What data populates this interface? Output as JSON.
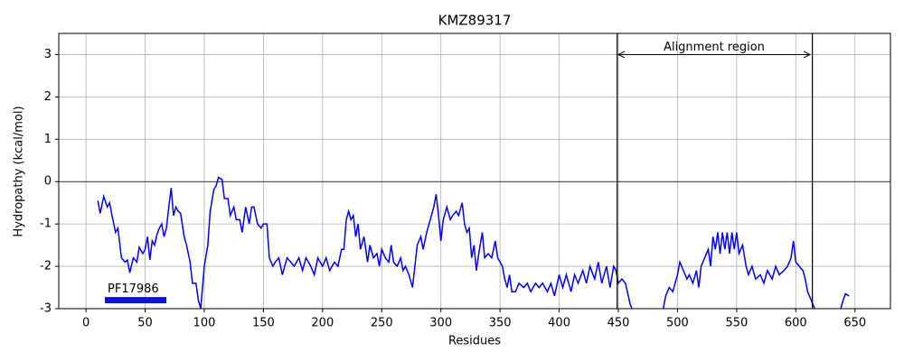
{
  "chart_data": {
    "type": "line",
    "title": "KMZ89317",
    "xlabel": "Residues",
    "ylabel": "Hydropathy (kcal/mol)",
    "xlim": [
      -23,
      680
    ],
    "ylim": [
      -3,
      3.5
    ],
    "xticks": [
      0,
      50,
      100,
      150,
      200,
      250,
      300,
      350,
      400,
      450,
      500,
      550,
      600,
      650
    ],
    "yticks": [
      -3,
      -2,
      -1,
      0,
      1,
      2,
      3
    ],
    "grid": true,
    "vlines": [
      449,
      614
    ],
    "hlines": [
      0
    ],
    "region": {
      "label": "Alignment region",
      "start": 450,
      "end": 612,
      "y": 3
    },
    "domain": {
      "label": "PF17986",
      "start": 16,
      "end": 68,
      "y": -2.8,
      "color": "#0a14d8"
    },
    "series": [
      {
        "name": "Hydropathy",
        "color": "#0000ff",
        "x": [
          10,
          12,
          15,
          18,
          20,
          22,
          25,
          27,
          30,
          33,
          35,
          37,
          40,
          43,
          45,
          48,
          50,
          52,
          54,
          56,
          58,
          60,
          62,
          64,
          66,
          68,
          70,
          72,
          74,
          76,
          78,
          80,
          83,
          85,
          88,
          90,
          93,
          95,
          97,
          100,
          103,
          105,
          108,
          110,
          112,
          115,
          117,
          120,
          122,
          125,
          127,
          130,
          132,
          135,
          138,
          140,
          142,
          145,
          148,
          150,
          153,
          155,
          158,
          160,
          163,
          166,
          170,
          173,
          176,
          180,
          183,
          186,
          190,
          193,
          196,
          200,
          203,
          206,
          210,
          213,
          216,
          218,
          220,
          222,
          224,
          226,
          228,
          230,
          232,
          235,
          238,
          240,
          243,
          246,
          248,
          250,
          253,
          256,
          258,
          260,
          263,
          266,
          268,
          270,
          273,
          276,
          278,
          280,
          283,
          285,
          288,
          290,
          292,
          294,
          296,
          298,
          300,
          302,
          305,
          308,
          310,
          313,
          315,
          318,
          320,
          322,
          324,
          326,
          328,
          330,
          332,
          335,
          337,
          340,
          343,
          346,
          348,
          350,
          352,
          354,
          356,
          358,
          360,
          363,
          366,
          370,
          373,
          376,
          380,
          383,
          386,
          390,
          393,
          396,
          400,
          403,
          406,
          410,
          413,
          416,
          420,
          423,
          426,
          430,
          433,
          436,
          440,
          443,
          446,
          448,
          450,
          453,
          456,
          460,
          463,
          466,
          470,
          475,
          480,
          485,
          488,
          490,
          493,
          496,
          500,
          502,
          505,
          508,
          510,
          513,
          516,
          518,
          520,
          523,
          526,
          528,
          530,
          532,
          534,
          536,
          538,
          540,
          542,
          544,
          546,
          548,
          550,
          552,
          555,
          558,
          560,
          563,
          566,
          570,
          573,
          576,
          580,
          583,
          586,
          590,
          593,
          596,
          598,
          600,
          603,
          606,
          608,
          610,
          613,
          616,
          620,
          625,
          630,
          635,
          638,
          640,
          642,
          645
        ],
        "values": [
          -0.45,
          -0.75,
          -0.35,
          -0.6,
          -0.5,
          -0.8,
          -1.2,
          -1.1,
          -1.8,
          -1.9,
          -1.85,
          -2.15,
          -1.8,
          -1.9,
          -1.55,
          -1.7,
          -1.6,
          -1.3,
          -1.85,
          -1.4,
          -1.5,
          -1.25,
          -1.1,
          -1.0,
          -1.3,
          -1.1,
          -0.6,
          -0.15,
          -0.8,
          -0.6,
          -0.7,
          -0.75,
          -1.3,
          -1.5,
          -1.9,
          -2.4,
          -2.4,
          -2.8,
          -3.0,
          -2.0,
          -1.5,
          -0.7,
          -0.2,
          -0.1,
          0.1,
          0.05,
          -0.4,
          -0.4,
          -0.8,
          -0.6,
          -0.9,
          -0.9,
          -1.2,
          -0.6,
          -1.0,
          -0.6,
          -0.6,
          -1.0,
          -1.1,
          -1.0,
          -1.0,
          -1.8,
          -2.0,
          -1.9,
          -1.8,
          -2.2,
          -1.8,
          -1.9,
          -2.0,
          -1.8,
          -2.1,
          -1.8,
          -2.0,
          -2.2,
          -1.8,
          -2.0,
          -1.8,
          -2.1,
          -1.9,
          -2.0,
          -1.6,
          -1.6,
          -0.9,
          -0.7,
          -0.9,
          -0.8,
          -1.3,
          -1.0,
          -1.6,
          -1.3,
          -1.9,
          -1.5,
          -1.8,
          -1.7,
          -2.0,
          -1.6,
          -1.8,
          -1.9,
          -1.5,
          -1.9,
          -2.0,
          -1.8,
          -2.1,
          -2.0,
          -2.2,
          -2.5,
          -2.0,
          -1.5,
          -1.3,
          -1.6,
          -1.2,
          -1.0,
          -0.8,
          -0.6,
          -0.3,
          -0.8,
          -1.4,
          -0.9,
          -0.6,
          -0.9,
          -0.8,
          -0.7,
          -0.8,
          -0.5,
          -1.0,
          -1.2,
          -1.1,
          -1.8,
          -1.5,
          -2.1,
          -1.7,
          -1.2,
          -1.8,
          -1.7,
          -1.8,
          -1.4,
          -1.8,
          -1.9,
          -2.0,
          -2.3,
          -2.5,
          -2.2,
          -2.6,
          -2.6,
          -2.4,
          -2.5,
          -2.4,
          -2.6,
          -2.4,
          -2.5,
          -2.4,
          -2.6,
          -2.4,
          -2.7,
          -2.2,
          -2.5,
          -2.2,
          -2.6,
          -2.2,
          -2.4,
          -2.1,
          -2.4,
          -2.0,
          -2.3,
          -1.9,
          -2.4,
          -2.0,
          -2.5,
          -2.0,
          -2.1,
          -2.4,
          -2.3,
          -2.4,
          -2.9,
          -3.1,
          -3.5,
          -3.6,
          -3.8,
          -3.5,
          -3.2,
          -3.0,
          -2.7,
          -2.5,
          -2.6,
          -2.2,
          -1.9,
          -2.1,
          -2.3,
          -2.2,
          -2.4,
          -2.1,
          -2.5,
          -2.0,
          -1.8,
          -1.6,
          -2.0,
          -1.3,
          -1.6,
          -1.2,
          -1.7,
          -1.2,
          -1.6,
          -1.2,
          -1.7,
          -1.2,
          -1.6,
          -1.2,
          -1.7,
          -1.5,
          -2.0,
          -2.2,
          -2.0,
          -2.3,
          -2.2,
          -2.4,
          -2.1,
          -2.3,
          -2.0,
          -2.2,
          -2.1,
          -2.0,
          -1.8,
          -1.4,
          -1.9,
          -2.0,
          -2.1,
          -2.3,
          -2.6,
          -2.8,
          -3.0,
          -3.3,
          -3.6,
          -3.5,
          -3.2,
          -3.0,
          -2.8,
          -2.65,
          -2.7
        ]
      }
    ]
  }
}
